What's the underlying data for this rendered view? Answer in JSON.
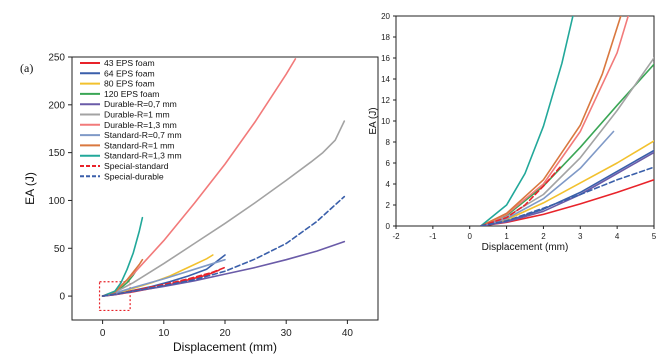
{
  "figure": {
    "panel_label": "(a)"
  },
  "chart_data": [
    {
      "type": "line",
      "xlabel": "Displacement (mm)",
      "ylabel": "EA (J)",
      "xlim": [
        -5,
        45
      ],
      "ylim": [
        -25,
        250
      ],
      "xticks": [
        0,
        10,
        20,
        30,
        40
      ],
      "yticks": [
        0,
        50,
        100,
        150,
        200,
        250
      ],
      "grid": false,
      "legend_position": "top-left",
      "inset_box": {
        "x": [
          -0.5,
          4.5
        ],
        "y": [
          -15,
          15
        ]
      },
      "series": [
        {
          "name": "43 EPS foam",
          "color": "#e8232a",
          "dash": "solid",
          "x": [
            0,
            2,
            5,
            8,
            11,
            14,
            17,
            19
          ],
          "y": [
            0,
            1.5,
            4.5,
            8,
            12,
            17,
            22,
            27
          ]
        },
        {
          "name": "64 EPS foam",
          "color": "#3a5faa",
          "dash": "solid",
          "x": [
            0,
            2,
            5,
            8,
            11,
            14,
            17,
            20
          ],
          "y": [
            0,
            2,
            6,
            10,
            15,
            21,
            28,
            43
          ]
        },
        {
          "name": "80 EPS foam",
          "color": "#f2c12e",
          "dash": "solid",
          "x": [
            0,
            2,
            5,
            8,
            11,
            14,
            17,
            18
          ],
          "y": [
            0,
            2.5,
            8,
            14,
            21,
            30,
            39,
            43
          ]
        },
        {
          "name": "120 EPS foam",
          "color": "#3aa655",
          "dash": "solid",
          "x": [
            0,
            2,
            4,
            5,
            5.5
          ],
          "y": [
            0,
            3,
            14,
            22,
            27
          ]
        },
        {
          "name": "Durable-R=0,7 mm",
          "color": "#6a5ba8",
          "dash": "solid",
          "x": [
            0,
            2,
            5,
            10,
            15,
            20,
            25,
            30,
            35,
            39.5
          ],
          "y": [
            0,
            1.5,
            5,
            10,
            16,
            23,
            30,
            38,
            47,
            57
          ]
        },
        {
          "name": "Durable-R=1 mm",
          "color": "#a3a3a3",
          "dash": "solid",
          "x": [
            0,
            2,
            5,
            10,
            15,
            20,
            25,
            30,
            34,
            36,
            38,
            39.5
          ],
          "y": [
            0,
            4,
            14,
            34,
            55,
            76,
            98,
            121,
            140,
            150,
            163,
            183
          ]
        },
        {
          "name": "Durable-R=1,3 mm",
          "color": "#f27a7a",
          "dash": "solid",
          "x": [
            0,
            2,
            5,
            10,
            15,
            20,
            25,
            30,
            31.5
          ],
          "y": [
            0,
            5,
            23,
            58,
            97,
            138,
            183,
            232,
            248
          ]
        },
        {
          "name": "Standard-R=0,7 mm",
          "color": "#7f99c7",
          "dash": "solid",
          "x": [
            0,
            2,
            5,
            10,
            15,
            20
          ],
          "y": [
            0,
            3,
            9,
            18,
            28,
            38
          ]
        },
        {
          "name": "Standard-R=1 mm",
          "color": "#d9783f",
          "dash": "solid",
          "x": [
            0,
            2,
            4,
            6,
            6.5
          ],
          "y": [
            0,
            4,
            17,
            33,
            38
          ]
        },
        {
          "name": "Standard-R=1,3 mm",
          "color": "#22a89a",
          "dash": "solid",
          "x": [
            0,
            2,
            3,
            4,
            5,
            6,
            6.5
          ],
          "y": [
            0,
            5,
            14,
            28,
            45,
            68,
            82
          ]
        },
        {
          "name": "Special-standard",
          "color": "#e8232a",
          "dash": "dashed",
          "x": [
            0,
            3,
            6,
            10,
            14,
            18,
            20
          ],
          "y": [
            0,
            3,
            7,
            12,
            18,
            25,
            30
          ]
        },
        {
          "name": "Special-durable",
          "color": "#3a5faa",
          "dash": "dashed",
          "x": [
            0,
            5,
            10,
            15,
            20,
            25,
            30,
            35,
            39.5
          ],
          "y": [
            0,
            5,
            11,
            17,
            26,
            39,
            55,
            78,
            104
          ]
        }
      ]
    },
    {
      "type": "line",
      "xlabel": "Displacement (mm)",
      "ylabel": "EA (J)",
      "xlim": [
        -2,
        5
      ],
      "ylim": [
        0,
        20
      ],
      "xticks": [
        -2,
        -1,
        0,
        1,
        2,
        3,
        4,
        5
      ],
      "yticks": [
        0,
        2,
        4,
        6,
        8,
        10,
        12,
        14,
        16,
        18,
        20
      ],
      "grid": false,
      "series": [
        {
          "name": "43 EPS foam",
          "color": "#e8232a",
          "dash": "solid",
          "x": [
            0.3,
            1,
            2,
            3,
            4,
            5
          ],
          "y": [
            0,
            0.35,
            1.1,
            2.1,
            3.2,
            4.4
          ]
        },
        {
          "name": "64 EPS foam",
          "color": "#3a5faa",
          "dash": "solid",
          "x": [
            0.3,
            1,
            2,
            3,
            4,
            5
          ],
          "y": [
            0,
            0.45,
            1.6,
            3.2,
            5.2,
            7.2
          ]
        },
        {
          "name": "80 EPS foam",
          "color": "#f2c12e",
          "dash": "solid",
          "x": [
            0.3,
            1,
            2,
            3,
            4,
            5
          ],
          "y": [
            0,
            0.6,
            2.2,
            4.1,
            6.0,
            8.1
          ]
        },
        {
          "name": "120 EPS foam",
          "color": "#3aa655",
          "dash": "solid",
          "x": [
            0.3,
            1,
            2,
            3,
            4,
            5
          ],
          "y": [
            0,
            1.0,
            3.8,
            7.5,
            11.5,
            15.4
          ]
        },
        {
          "name": "Durable-R=0,7 mm",
          "color": "#6a5ba8",
          "dash": "solid",
          "x": [
            0.3,
            1,
            2,
            3,
            4,
            5
          ],
          "y": [
            0,
            0.4,
            1.4,
            3.0,
            5.0,
            7.0
          ]
        },
        {
          "name": "Durable-R=1 mm",
          "color": "#a3a3a3",
          "dash": "solid",
          "x": [
            0.3,
            1,
            2,
            3,
            4,
            5
          ],
          "y": [
            0,
            0.9,
            3.0,
            6.5,
            11.0,
            16.0
          ]
        },
        {
          "name": "Durable-R=1,3 mm",
          "color": "#f27a7a",
          "dash": "solid",
          "x": [
            0.3,
            1,
            2,
            3,
            4,
            4.3
          ],
          "y": [
            0,
            1.1,
            4.0,
            9.0,
            16.5,
            20
          ]
        },
        {
          "name": "Standard-R=0,7 mm",
          "color": "#7f99c7",
          "dash": "solid",
          "x": [
            0.3,
            1,
            2,
            3,
            3.9
          ],
          "y": [
            0,
            0.7,
            2.6,
            5.5,
            9.0
          ]
        },
        {
          "name": "Standard-R=1 mm",
          "color": "#d9783f",
          "dash": "solid",
          "x": [
            0.3,
            1,
            2,
            3,
            3.6,
            4.1
          ],
          "y": [
            0,
            1.2,
            4.4,
            9.6,
            14.5,
            20
          ]
        },
        {
          "name": "Standard-R=1,3 mm",
          "color": "#22a89a",
          "dash": "solid",
          "x": [
            0.3,
            1,
            1.5,
            2,
            2.5,
            2.8
          ],
          "y": [
            0,
            2.0,
            5.0,
            9.5,
            15.5,
            20
          ]
        },
        {
          "name": "Special-standard",
          "color": "#e8232a",
          "dash": "dashed",
          "x": [
            0.3,
            1,
            1.5,
            2,
            2.5
          ],
          "y": [
            0,
            0.8,
            2.0,
            3.8,
            5.8
          ]
        },
        {
          "name": "Special-durable",
          "color": "#3a5faa",
          "dash": "dashed",
          "x": [
            0.3,
            1,
            2,
            3,
            4,
            5
          ],
          "y": [
            0,
            0.5,
            1.7,
            3.0,
            4.4,
            5.6
          ]
        }
      ]
    }
  ]
}
